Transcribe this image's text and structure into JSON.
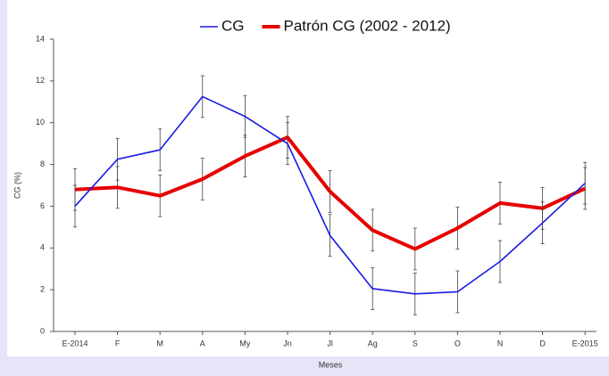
{
  "chart_data": {
    "type": "line",
    "x_label": "Meses",
    "y_label": "CG (%)",
    "categories": [
      "E-2014",
      "F",
      "M",
      "A",
      "My",
      "Jn",
      "Jl",
      "Ag",
      "S",
      "O",
      "N",
      "D",
      "E-2015"
    ],
    "series": [
      {
        "name": "CG",
        "color": "#1a1ae6",
        "width": 1.6,
        "values": [
          6.0,
          8.25,
          8.7,
          11.25,
          10.3,
          9.0,
          4.6,
          2.05,
          1.8,
          1.9,
          3.35,
          5.2,
          7.1
        ],
        "errors": [
          1,
          1,
          1,
          1,
          1,
          1,
          1,
          1,
          1,
          1,
          1,
          1,
          1
        ]
      },
      {
        "name": "Patrón CG (2002 - 2012)",
        "color": "#e60000",
        "width": 4,
        "values": [
          6.8,
          6.9,
          6.5,
          7.3,
          8.4,
          9.3,
          6.7,
          4.85,
          3.95,
          4.95,
          6.15,
          5.9,
          6.85
        ],
        "errors": [
          1,
          1,
          1,
          1,
          1,
          1,
          1,
          1,
          1,
          1,
          1,
          1,
          1
        ]
      }
    ],
    "ylim": [
      0,
      14
    ],
    "yticks": [
      0,
      2,
      4,
      6,
      8,
      10,
      12,
      14
    ],
    "grid": false
  }
}
